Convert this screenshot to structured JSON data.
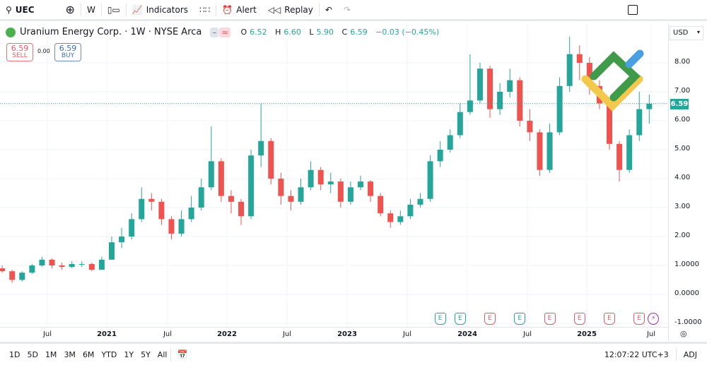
{
  "toolbar": {
    "symbol": "UEC",
    "interval": "W",
    "indicators": "Indicators",
    "alert": "Alert",
    "replay": "Replay"
  },
  "legend": {
    "name": "Uranium Energy Corp. · 1W · NYSE Arca",
    "open_label": "O",
    "open": "6.52",
    "high_label": "H",
    "high": "6.60",
    "low_label": "L",
    "low": "5.90",
    "close_label": "C",
    "close": "6.59",
    "change": "−0.03 (−0.45%)"
  },
  "trade": {
    "sell_price": "6.59",
    "sell_label": "SELL",
    "spread": "0.00",
    "buy_price": "6.59",
    "buy_label": "BUY"
  },
  "currency": "USD",
  "last_price": "6.59",
  "colors": {
    "up": "#26a69a",
    "down": "#ef5350",
    "grid": "#f0f3fa",
    "badge_green": "#26a69a",
    "badge_red": "#e05a6a",
    "lightning": "#9c27b0"
  },
  "chart_data": {
    "type": "candlestick",
    "interval": "1W (shown here at monthly resolution)",
    "y_ticks": [
      "8.00",
      "7.00",
      "6.00",
      "5.00",
      "4.00",
      "3.00",
      "2.00",
      "1.0000",
      "0.0000",
      "-1.0000"
    ],
    "y_range": [
      -1.0,
      9.0
    ],
    "x_ticks": [
      "Jul",
      "2021",
      "Jul",
      "2022",
      "Jul",
      "2023",
      "Jul",
      "2024",
      "Jul",
      "2025",
      "Jul"
    ],
    "last_price": 6.59,
    "candles": [
      [
        "2020-02",
        0.9,
        1.0,
        0.75,
        0.8
      ],
      [
        "2020-03",
        0.8,
        0.85,
        0.4,
        0.5
      ],
      [
        "2020-04",
        0.5,
        0.8,
        0.45,
        0.75
      ],
      [
        "2020-05",
        0.75,
        1.05,
        0.7,
        1.0
      ],
      [
        "2020-06",
        1.0,
        1.3,
        0.95,
        1.2
      ],
      [
        "2020-07",
        1.2,
        1.25,
        0.9,
        1.0
      ],
      [
        "2020-08",
        1.0,
        1.1,
        0.85,
        0.95
      ],
      [
        "2020-09",
        0.95,
        1.15,
        0.9,
        1.05
      ],
      [
        "2020-10",
        1.05,
        1.15,
        0.95,
        1.05
      ],
      [
        "2020-11",
        1.05,
        1.1,
        0.8,
        0.85
      ],
      [
        "2020-12",
        0.85,
        1.3,
        0.85,
        1.2
      ],
      [
        "2021-01",
        1.2,
        2.0,
        1.2,
        1.8
      ],
      [
        "2021-02",
        1.8,
        2.3,
        1.6,
        2.0
      ],
      [
        "2021-03",
        2.0,
        2.8,
        1.9,
        2.6
      ],
      [
        "2021-04",
        2.6,
        3.7,
        2.5,
        3.3
      ],
      [
        "2021-05",
        3.3,
        3.5,
        2.9,
        3.2
      ],
      [
        "2021-06",
        3.2,
        3.3,
        2.4,
        2.6
      ],
      [
        "2021-07",
        2.6,
        2.7,
        1.9,
        2.1
      ],
      [
        "2021-08",
        2.1,
        2.9,
        2.0,
        2.6
      ],
      [
        "2021-09",
        2.6,
        3.4,
        2.5,
        3.0
      ],
      [
        "2021-10",
        3.0,
        4.0,
        2.9,
        3.7
      ],
      [
        "2021-11",
        3.7,
        5.8,
        3.6,
        4.6
      ],
      [
        "2021-12",
        4.6,
        4.7,
        3.2,
        3.4
      ],
      [
        "2022-01",
        3.4,
        3.6,
        2.8,
        3.2
      ],
      [
        "2022-02",
        3.2,
        3.3,
        2.4,
        2.7
      ],
      [
        "2022-03",
        2.7,
        5.0,
        2.6,
        4.8
      ],
      [
        "2022-04",
        4.8,
        6.6,
        4.4,
        5.3
      ],
      [
        "2022-05",
        5.3,
        5.4,
        3.8,
        4.0
      ],
      [
        "2022-06",
        4.0,
        4.2,
        3.1,
        3.4
      ],
      [
        "2022-07",
        3.4,
        3.6,
        2.9,
        3.2
      ],
      [
        "2022-08",
        3.2,
        4.0,
        3.1,
        3.7
      ],
      [
        "2022-09",
        3.7,
        4.6,
        3.6,
        4.3
      ],
      [
        "2022-10",
        4.3,
        4.4,
        3.6,
        3.8
      ],
      [
        "2022-11",
        3.8,
        4.2,
        3.5,
        3.9
      ],
      [
        "2022-12",
        3.9,
        4.0,
        3.0,
        3.2
      ],
      [
        "2023-01",
        3.2,
        3.9,
        3.1,
        3.7
      ],
      [
        "2023-02",
        3.7,
        4.1,
        3.6,
        3.9
      ],
      [
        "2023-03",
        3.9,
        3.95,
        3.2,
        3.4
      ],
      [
        "2023-04",
        3.4,
        3.5,
        2.7,
        2.8
      ],
      [
        "2023-05",
        2.8,
        2.9,
        2.3,
        2.5
      ],
      [
        "2023-06",
        2.5,
        2.9,
        2.4,
        2.7
      ],
      [
        "2023-07",
        2.7,
        3.3,
        2.6,
        3.1
      ],
      [
        "2023-08",
        3.1,
        3.5,
        3.0,
        3.3
      ],
      [
        "2023-09",
        3.3,
        4.8,
        3.2,
        4.6
      ],
      [
        "2023-10",
        4.6,
        5.3,
        4.4,
        5.0
      ],
      [
        "2023-11",
        5.0,
        5.7,
        4.9,
        5.5
      ],
      [
        "2023-12",
        5.5,
        6.6,
        5.4,
        6.3
      ],
      [
        "2024-01",
        6.3,
        8.3,
        6.2,
        6.7
      ],
      [
        "2024-02",
        6.7,
        8.0,
        6.6,
        7.8
      ],
      [
        "2024-03",
        7.8,
        7.9,
        6.1,
        6.4
      ],
      [
        "2024-04",
        6.4,
        7.3,
        6.2,
        7.0
      ],
      [
        "2024-05",
        7.0,
        7.8,
        6.8,
        7.4
      ],
      [
        "2024-06",
        7.4,
        7.5,
        5.8,
        6.0
      ],
      [
        "2024-07",
        6.0,
        6.4,
        5.3,
        5.6
      ],
      [
        "2024-08",
        5.6,
        5.7,
        4.1,
        4.3
      ],
      [
        "2024-09",
        4.3,
        5.9,
        4.2,
        5.6
      ],
      [
        "2024-10",
        5.6,
        7.5,
        5.5,
        7.2
      ],
      [
        "2024-11",
        7.2,
        8.9,
        7.0,
        8.3
      ],
      [
        "2024-12",
        8.3,
        8.6,
        7.4,
        8.0
      ],
      [
        "2025-01",
        8.0,
        8.2,
        6.9,
        7.2
      ],
      [
        "2025-02",
        7.2,
        7.4,
        6.4,
        6.6
      ],
      [
        "2025-03",
        6.6,
        6.7,
        5.0,
        5.2
      ],
      [
        "2025-04",
        5.2,
        5.3,
        3.9,
        4.3
      ],
      [
        "2025-05",
        4.3,
        5.7,
        4.2,
        5.5
      ],
      [
        "2025-06",
        5.5,
        7.0,
        5.3,
        6.4
      ],
      [
        "2025-07",
        6.4,
        6.9,
        5.9,
        6.59
      ]
    ],
    "events": [
      {
        "month": "2023-10",
        "type": "earnings",
        "result": "green",
        "label": "E"
      },
      {
        "month": "2023-12",
        "type": "earnings",
        "result": "green",
        "label": "E"
      },
      {
        "month": "2024-03",
        "type": "earnings",
        "result": "red",
        "label": "E"
      },
      {
        "month": "2024-06",
        "type": "earnings",
        "result": "green",
        "label": "E"
      },
      {
        "month": "2024-09",
        "type": "earnings",
        "result": "red",
        "label": "E"
      },
      {
        "month": "2024-12",
        "type": "earnings",
        "result": "red",
        "label": "E"
      },
      {
        "month": "2025-03",
        "type": "earnings",
        "result": "red",
        "label": "E"
      },
      {
        "month": "2025-06",
        "type": "earnings",
        "result": "red",
        "label": "E"
      },
      {
        "month": "2025-07",
        "type": "lightning",
        "result": "purple",
        "label": "⚡"
      }
    ]
  },
  "bottom": {
    "ranges": [
      "1D",
      "5D",
      "1M",
      "3M",
      "6M",
      "YTD",
      "1Y",
      "5Y",
      "All"
    ],
    "time": "12:07:22 UTC+3",
    "adj": "ADJ"
  }
}
